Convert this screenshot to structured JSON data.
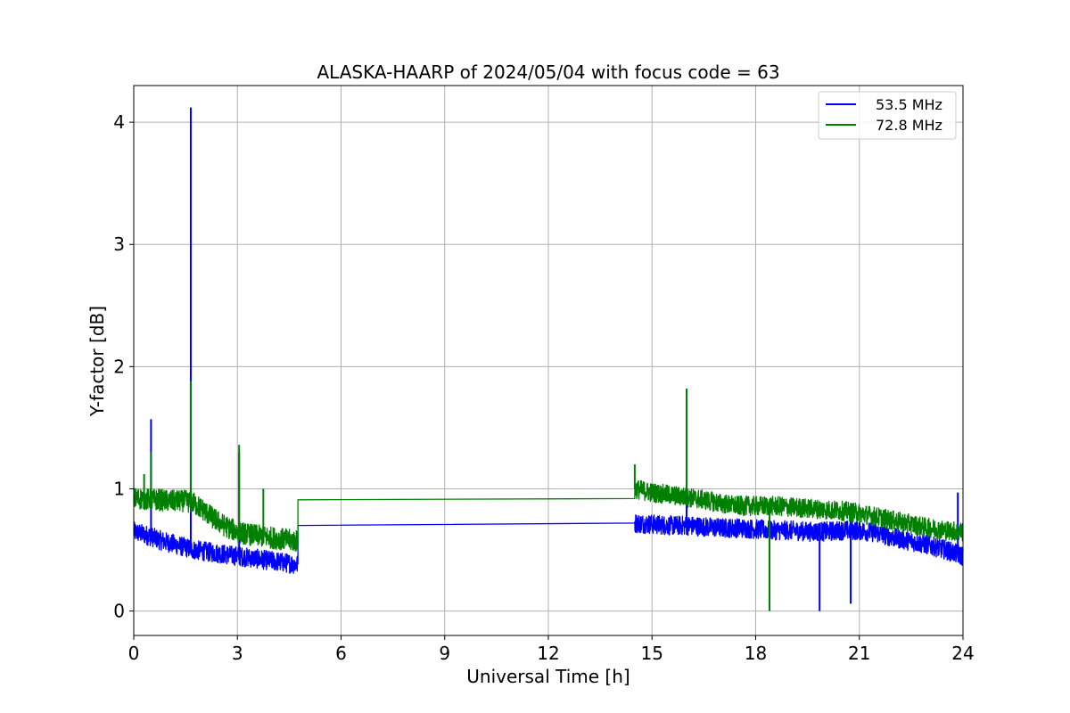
{
  "chart_data": {
    "type": "line",
    "title": "ALASKA-HAARP of 2024/05/04 with focus code = 63",
    "xlabel": "Universal Time [h]",
    "ylabel": "Y-factor [dB]",
    "xlim": [
      0,
      24
    ],
    "ylim": [
      -0.2,
      4.3
    ],
    "xticks": [
      0,
      3,
      6,
      9,
      12,
      15,
      18,
      21,
      24
    ],
    "yticks": [
      0,
      1,
      2,
      3,
      4
    ],
    "grid": true,
    "legend_position": "top-right",
    "colors": {
      "s535": "#0000ff",
      "s728": "#008000"
    },
    "series": [
      {
        "name": "53.5 MHz",
        "color": "#0000ff",
        "segments": [
          {
            "x": [
              0.0,
              0.25,
              0.5,
              0.75,
              1.0,
              1.25,
              1.5,
              1.75,
              2.0,
              2.25,
              2.5,
              2.75,
              3.0,
              3.25,
              3.5,
              3.75,
              4.0,
              4.25,
              4.5,
              4.75
            ],
            "y": [
              0.65,
              0.63,
              0.61,
              0.58,
              0.56,
              0.54,
              0.52,
              0.5,
              0.49,
              0.48,
              0.47,
              0.46,
              0.45,
              0.44,
              0.43,
              0.42,
              0.41,
              0.4,
              0.39,
              0.38
            ],
            "noise": 0.08
          },
          {
            "x": [
              4.75,
              14.5
            ],
            "y": [
              0.7,
              0.72
            ],
            "noise": 0
          },
          {
            "x": [
              14.5,
              15.0,
              15.5,
              16.0,
              16.5,
              17.0,
              17.5,
              18.0,
              18.5,
              19.0,
              19.5,
              20.0,
              20.5,
              21.0,
              21.5,
              22.0,
              22.5,
              23.0,
              23.5,
              24.0
            ],
            "y": [
              0.72,
              0.71,
              0.7,
              0.7,
              0.69,
              0.68,
              0.68,
              0.67,
              0.66,
              0.66,
              0.65,
              0.65,
              0.66,
              0.66,
              0.64,
              0.6,
              0.57,
              0.54,
              0.5,
              0.45
            ],
            "noise": 0.08
          }
        ],
        "spikes": [
          {
            "x": 0.5,
            "y": 1.57
          },
          {
            "x": 1.65,
            "y": 4.12
          },
          {
            "x": 3.05,
            "y": 1.3
          },
          {
            "x": 16.0,
            "y": 1.4
          },
          {
            "x": 18.4,
            "y": 0.05
          },
          {
            "x": 19.85,
            "y": 0.0
          },
          {
            "x": 20.75,
            "y": 0.06
          },
          {
            "x": 23.85,
            "y": 0.97
          }
        ]
      },
      {
        "name": "72.8 MHz",
        "color": "#008000",
        "segments": [
          {
            "x": [
              0.0,
              0.25,
              0.5,
              0.75,
              1.0,
              1.25,
              1.5,
              1.75,
              2.0,
              2.25,
              2.5,
              2.75,
              3.0,
              3.25,
              3.5,
              3.75,
              4.0,
              4.25,
              4.5,
              4.75
            ],
            "y": [
              0.92,
              0.92,
              0.91,
              0.91,
              0.9,
              0.9,
              0.9,
              0.88,
              0.83,
              0.77,
              0.72,
              0.68,
              0.65,
              0.63,
              0.62,
              0.61,
              0.6,
              0.59,
              0.58,
              0.57
            ],
            "noise": 0.09
          },
          {
            "x": [
              4.75,
              14.5
            ],
            "y": [
              0.91,
              0.92
            ],
            "noise": 0
          },
          {
            "x": [
              14.5,
              15.0,
              15.5,
              16.0,
              16.5,
              17.0,
              17.5,
              18.0,
              18.5,
              19.0,
              19.5,
              20.0,
              20.5,
              21.0,
              21.5,
              22.0,
              22.5,
              23.0,
              23.5,
              24.0
            ],
            "y": [
              1.0,
              0.97,
              0.95,
              0.93,
              0.91,
              0.88,
              0.86,
              0.86,
              0.86,
              0.85,
              0.84,
              0.83,
              0.82,
              0.8,
              0.77,
              0.74,
              0.71,
              0.68,
              0.66,
              0.65
            ],
            "noise": 0.08
          }
        ],
        "spikes": [
          {
            "x": 0.3,
            "y": 1.12
          },
          {
            "x": 0.5,
            "y": 1.3
          },
          {
            "x": 1.65,
            "y": 1.88
          },
          {
            "x": 3.05,
            "y": 1.36
          },
          {
            "x": 3.75,
            "y": 1.0
          },
          {
            "x": 14.5,
            "y": 1.2
          },
          {
            "x": 16.0,
            "y": 1.82
          },
          {
            "x": 18.4,
            "y": 0.0
          }
        ]
      }
    ]
  }
}
